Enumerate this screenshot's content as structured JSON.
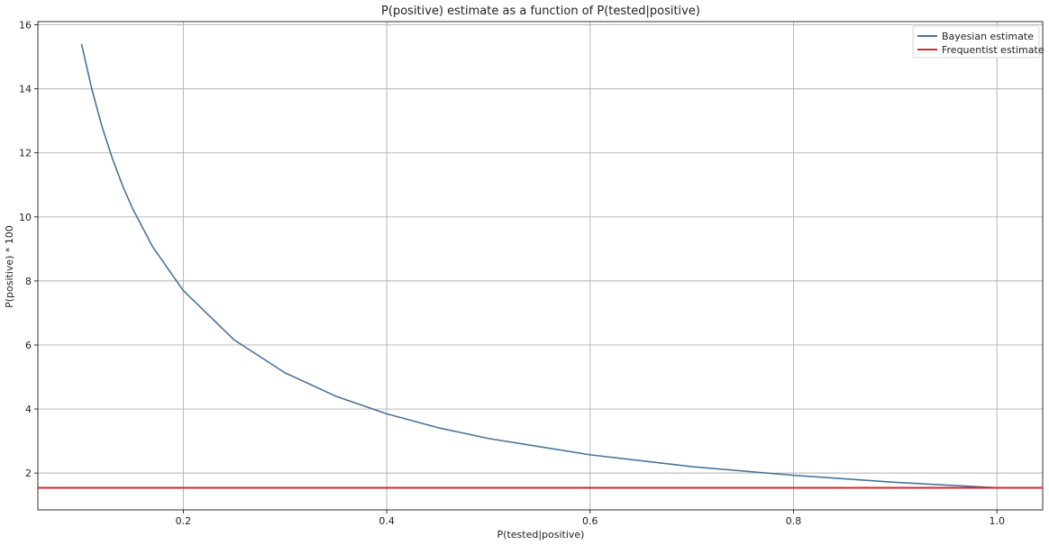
{
  "chart_data": {
    "type": "line",
    "title": "P(positive) estimate as a function of P(tested|positive)",
    "xlabel": "P(tested|positive)",
    "ylabel": "P(positive) * 100",
    "xlim": [
      0.057,
      1.045
    ],
    "ylim": [
      0.85,
      16.1
    ],
    "x_ticks": [
      "0.2",
      "0.4",
      "0.6",
      "0.8",
      "1.0"
    ],
    "y_ticks": [
      "2",
      "4",
      "6",
      "8",
      "10",
      "12",
      "14",
      "16"
    ],
    "grid": true,
    "legend_position": "top-right",
    "series": [
      {
        "name": "Bayesian estimate",
        "color": "#4a7399",
        "kind": "curve",
        "x": [
          0.1,
          0.11,
          0.12,
          0.13,
          0.14,
          0.15,
          0.17,
          0.2,
          0.25,
          0.3,
          0.35,
          0.4,
          0.45,
          0.5,
          0.6,
          0.7,
          0.8,
          0.9,
          1.0
        ],
        "y": [
          15.4,
          14.0,
          12.83,
          11.85,
          11.0,
          10.27,
          9.06,
          7.7,
          6.16,
          5.13,
          4.4,
          3.85,
          3.42,
          3.08,
          2.57,
          2.2,
          1.93,
          1.71,
          1.54
        ]
      },
      {
        "name": "Frequentist estimate",
        "color": "#d62728",
        "kind": "horizontal",
        "y": 1.54
      }
    ]
  }
}
